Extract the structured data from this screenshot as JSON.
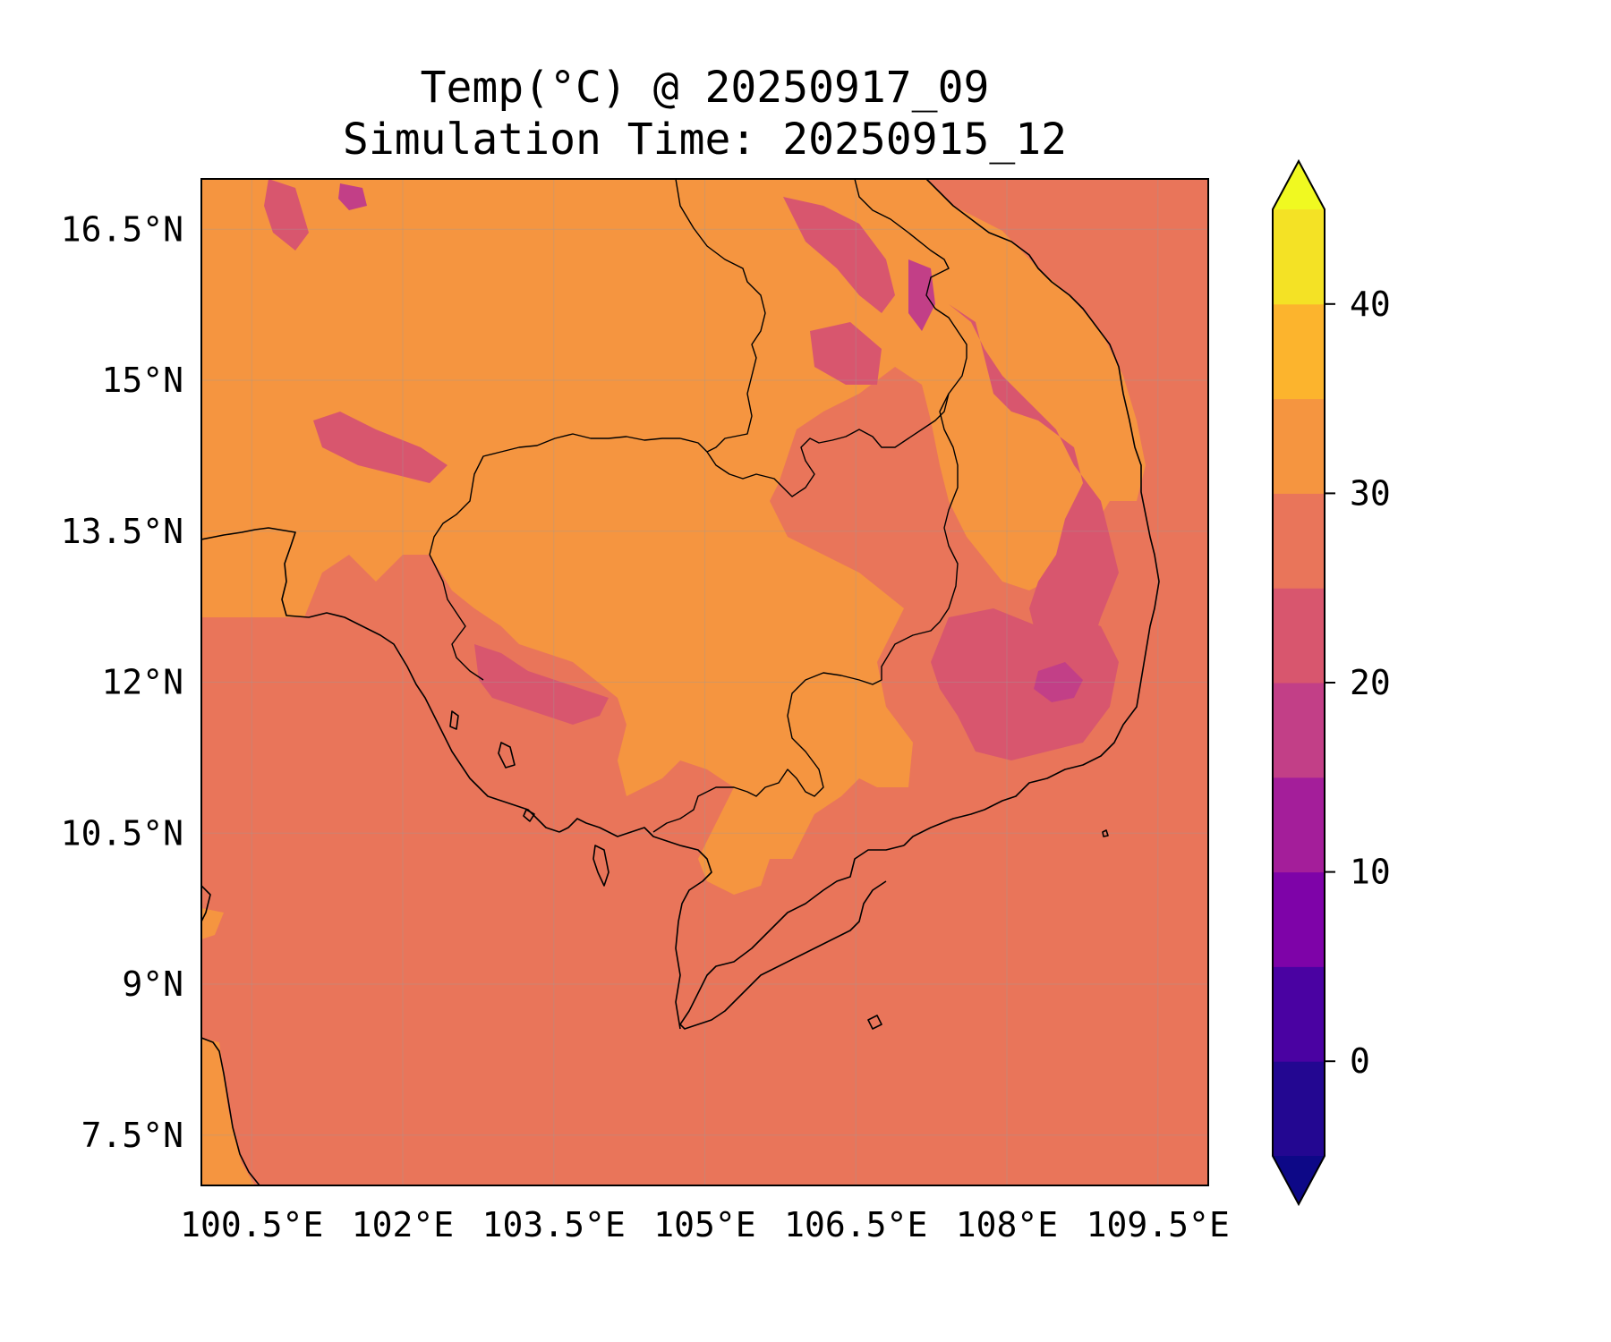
{
  "title": {
    "line1": "Temp(°C) @ 20250917_09",
    "line2": "Simulation Time: 20250915_12"
  },
  "map": {
    "variable": "Temp(°C)",
    "valid_time": "20250917_09",
    "simulation_time": "20250915_12",
    "x_ticks": [
      "100.5°E",
      "102°E",
      "103.5°E",
      "105°E",
      "106.5°E",
      "108°E",
      "109.5°E"
    ],
    "y_ticks": [
      "16.5°N",
      "15°N",
      "13.5°N",
      "12°N",
      "10.5°N",
      "9°N",
      "7.5°N"
    ],
    "lon_range": [
      100,
      110
    ],
    "lat_range": [
      7,
      17
    ],
    "grid": true,
    "colors": {
      "ocean": "#e9755a",
      "land_warm": "#f59540",
      "land_cool": "#d8566e",
      "land_cold": "#c23f87",
      "coastline": "#000000"
    }
  },
  "colorbar": {
    "ticks": [
      "40",
      "30",
      "20",
      "10",
      "0"
    ],
    "tick_values": [
      40,
      30,
      20,
      10,
      0
    ],
    "range": [
      -5,
      45
    ],
    "extend": "both",
    "bins": [
      {
        "from": -5,
        "to": 0,
        "color": "#230791"
      },
      {
        "from": 0,
        "to": 5,
        "color": "#4a02a2"
      },
      {
        "from": 5,
        "to": 10,
        "color": "#7e03a8"
      },
      {
        "from": 10,
        "to": 15,
        "color": "#a41e9a"
      },
      {
        "from": 15,
        "to": 20,
        "color": "#c23f87"
      },
      {
        "from": 20,
        "to": 25,
        "color": "#d8566e"
      },
      {
        "from": 25,
        "to": 30,
        "color": "#e9755a"
      },
      {
        "from": 30,
        "to": 35,
        "color": "#f59540"
      },
      {
        "from": 35,
        "to": 40,
        "color": "#fcb42d"
      },
      {
        "from": 40,
        "to": 45,
        "color": "#f4e225"
      }
    ],
    "under_color": "#0d0887",
    "over_color": "#f0f921"
  }
}
